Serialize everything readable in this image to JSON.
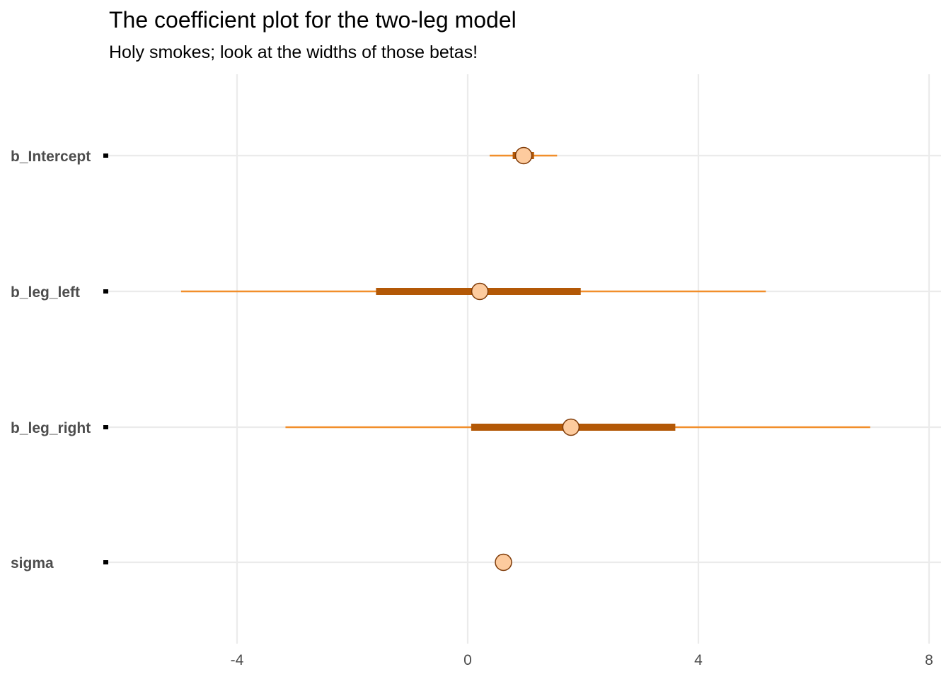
{
  "chart_data": {
    "type": "interval",
    "title": "The coefficient plot for the two-leg model",
    "subtitle": "Holy smokes; look at the widths of those betas!",
    "xlabel": "",
    "ylabel": "",
    "xlim": [
      -6.2,
      8.2
    ],
    "x_ticks": [
      -4,
      0,
      4,
      8
    ],
    "x_tick_labels": [
      "-4",
      "0",
      "4",
      "8"
    ],
    "grid": true,
    "legend": "none",
    "colors": {
      "outer_interval": "#f28e2b",
      "inner_interval": "#b35806",
      "point_fill": "#fdcb9e",
      "point_stroke": "#7f3b08",
      "grid": "#ebebeb"
    },
    "parameters": [
      {
        "label": "b_Intercept",
        "estimate": 0.97,
        "inner": [
          0.78,
          1.15
        ],
        "outer": [
          0.38,
          1.55
        ]
      },
      {
        "label": "b_leg_left",
        "estimate": 0.21,
        "inner": [
          -1.59,
          1.96
        ],
        "outer": [
          -4.97,
          5.17
        ]
      },
      {
        "label": "b_leg_right",
        "estimate": 1.79,
        "inner": [
          0.06,
          3.6
        ],
        "outer": [
          -3.16,
          6.98
        ]
      },
      {
        "label": "sigma",
        "estimate": 0.62,
        "inner": [
          0.58,
          0.67
        ],
        "outer": [
          0.54,
          0.72
        ]
      }
    ]
  }
}
